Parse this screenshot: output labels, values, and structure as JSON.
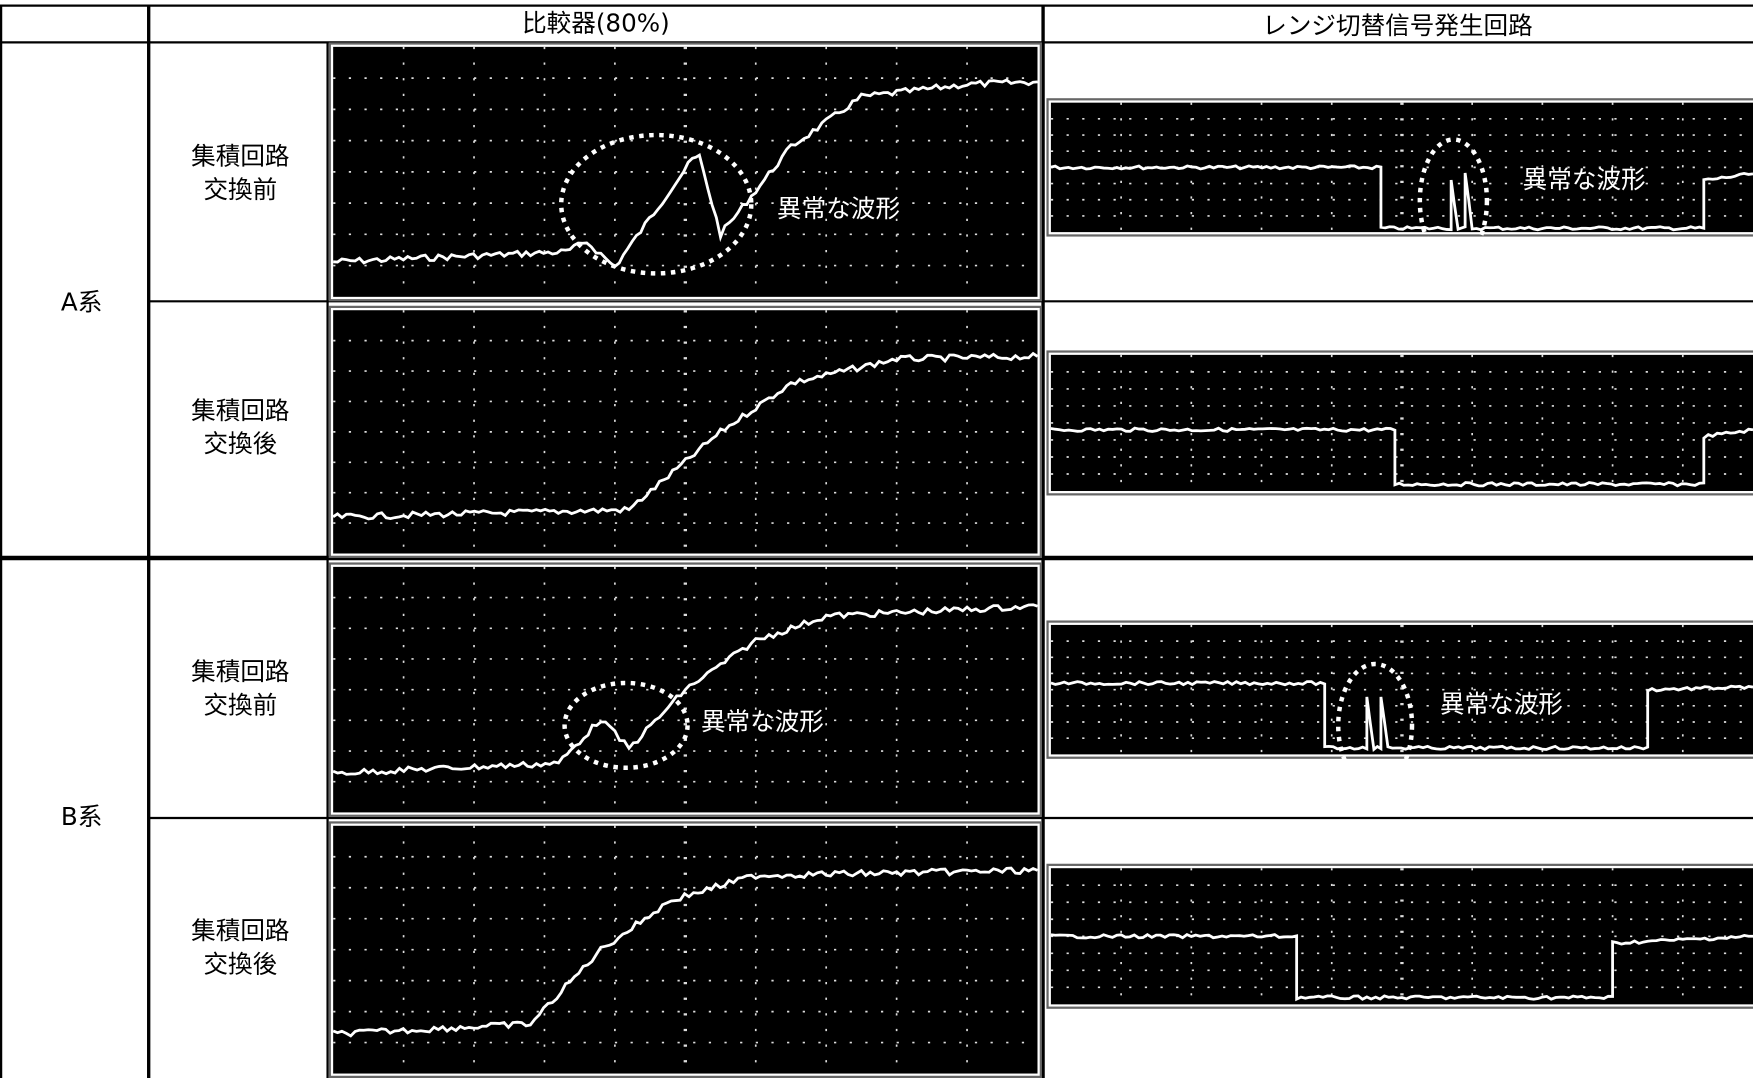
{
  "header": {
    "comparator": "比較器(80%)",
    "range_circuit": "レンジ切替信号発生回路"
  },
  "groups": [
    {
      "label": "A系",
      "rows": [
        {
          "label": [
            "集積回路",
            "交換前"
          ],
          "comparator_note": "異常な波形",
          "range_note": "異常な波形"
        },
        {
          "label": [
            "集積回路",
            "交換後"
          ]
        }
      ]
    },
    {
      "label": "B系",
      "rows": [
        {
          "label": [
            "集積回路",
            "交換前"
          ],
          "comparator_note": "異常な波形",
          "range_note": "異常な波形"
        },
        {
          "label": [
            "集積回路",
            "交換後"
          ]
        }
      ]
    }
  ]
}
